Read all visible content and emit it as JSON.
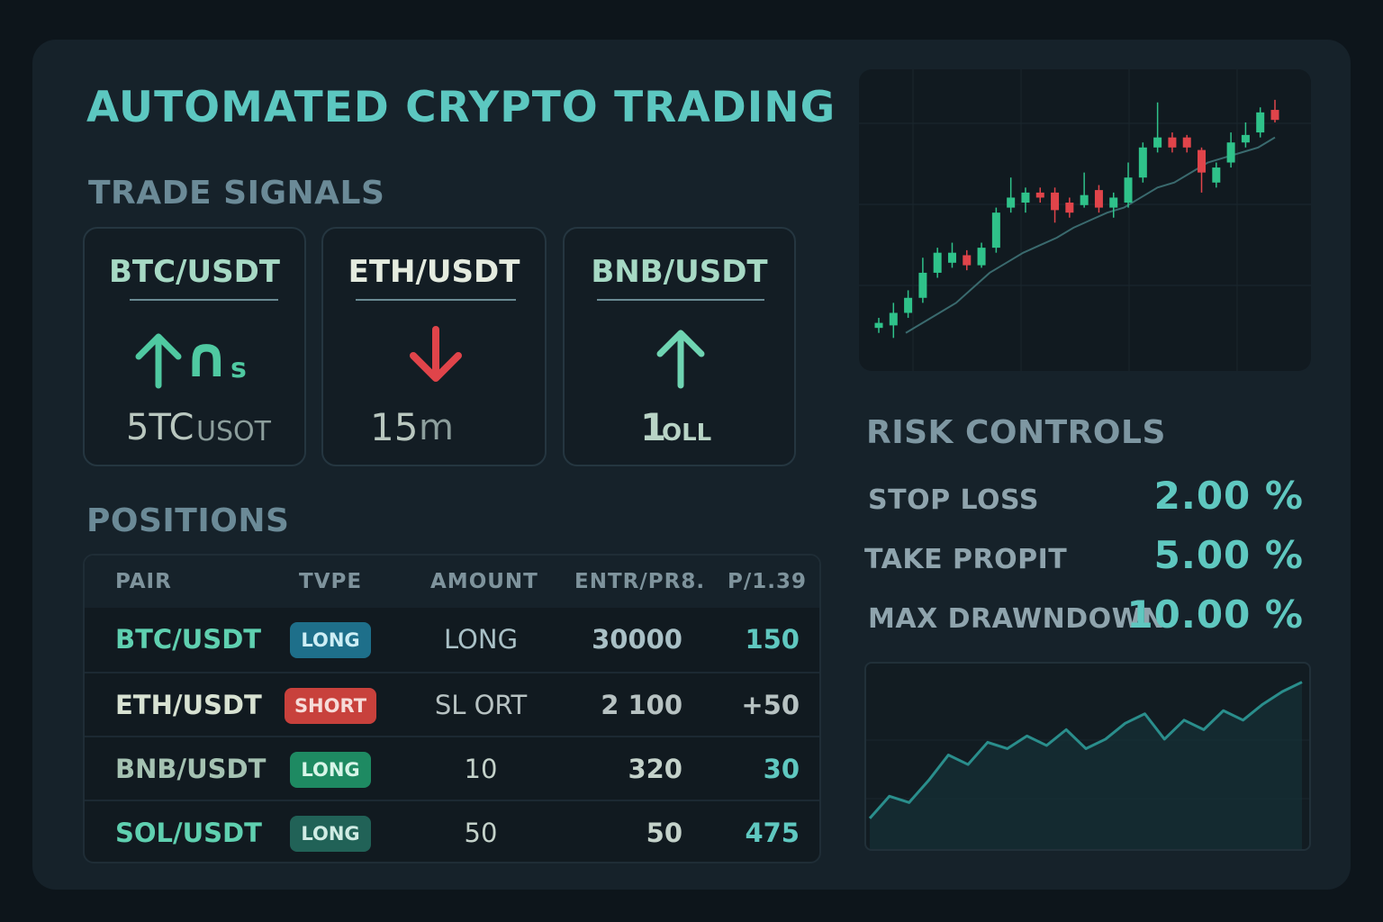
{
  "header": {
    "title": "AUTOMATED CRYPTO TRADING"
  },
  "signals": {
    "title": "TRADE SIGNALS",
    "cards": [
      {
        "pair": "BTC/USDT",
        "direction": "up",
        "icon": "arrow-up-icon",
        "glyph": "∩",
        "suffix": "s",
        "value_main": "5TC",
        "value_sub": "USOT",
        "pair_color": "#a6d9c4"
      },
      {
        "pair": "ETH/USDT",
        "direction": "down",
        "icon": "arrow-down-icon",
        "value_main": "15",
        "value_sub": "m",
        "pair_color": "#e4ebdf"
      },
      {
        "pair": "BNB/USDT",
        "direction": "up",
        "icon": "arrow-up-icon",
        "value_main": "1",
        "value_sub": "OLL",
        "pair_color": "#a6d9c4"
      }
    ]
  },
  "positions": {
    "title": "POSITIONS",
    "columns": [
      "PAIR",
      "TVPE",
      "AMOUNT",
      "ENTR/PR8.",
      "P/1.39"
    ],
    "rows": [
      {
        "pair": "BTC/USDT",
        "type": "LONG",
        "amount": "LONG",
        "entry": "30000",
        "pnl": "150",
        "pair_color": "#5fd0b0",
        "badge_bg": "#1e6f8a",
        "badge_color": "#cdeef5",
        "text_color": "#a9c0c6",
        "pnl_color": "#5fc8c0"
      },
      {
        "pair": "ETH/USDT",
        "type": "SHORT",
        "amount": "SL ORT",
        "entry": "2 100",
        "pnl": "+50",
        "pair_color": "#d8e2d2",
        "badge_bg": "#c8413c",
        "badge_color": "#f6dcd9",
        "text_color": "#b7c2c2",
        "pnl_color": "#b7c2c2"
      },
      {
        "pair": "BNB/USDT",
        "type": "LONG",
        "amount": "10",
        "entry": "320",
        "pnl": "30",
        "pair_color": "#a5c2b2",
        "badge_bg": "#1e8a62",
        "badge_color": "#d7f5e8",
        "text_color": "#c4d2ca",
        "pnl_color": "#5fc8c0"
      },
      {
        "pair": "SOL/USDT",
        "type": "LONG",
        "amount": "50",
        "entry": "50",
        "pnl": "475",
        "pair_color": "#5fd0b0",
        "badge_bg": "#216257",
        "badge_color": "#d0ece4",
        "text_color": "#c4d2ca",
        "pnl_color": "#5fc8c0"
      }
    ]
  },
  "risk": {
    "title": "RISK CONTROLS",
    "items": [
      {
        "label": "STOP  LOSS",
        "value": "2.00 %"
      },
      {
        "label": "TAKE PROPIT",
        "value": "5.00 %"
      },
      {
        "label": "MAX DRAWNDOWN",
        "value": "10.00 %"
      }
    ]
  },
  "colors": {
    "up": "#2fc28a",
    "down": "#e0444a",
    "accent": "#5cc7c0"
  },
  "chart_data": [
    {
      "type": "candlestick",
      "candles": [
        {
          "o": 10,
          "c": 12,
          "h": 14,
          "l": 8
        },
        {
          "o": 11,
          "c": 16,
          "h": 20,
          "l": 6
        },
        {
          "o": 16,
          "c": 22,
          "h": 25,
          "l": 14
        },
        {
          "o": 22,
          "c": 32,
          "h": 38,
          "l": 20
        },
        {
          "o": 32,
          "c": 40,
          "h": 42,
          "l": 30
        },
        {
          "o": 36,
          "c": 40,
          "h": 44,
          "l": 34
        },
        {
          "o": 39,
          "c": 35,
          "h": 41,
          "l": 33
        },
        {
          "o": 35,
          "c": 42,
          "h": 44,
          "l": 34
        },
        {
          "o": 42,
          "c": 56,
          "h": 58,
          "l": 40
        },
        {
          "o": 58,
          "c": 62,
          "h": 70,
          "l": 56
        },
        {
          "o": 60,
          "c": 64,
          "h": 66,
          "l": 56
        },
        {
          "o": 64,
          "c": 62,
          "h": 66,
          "l": 60
        },
        {
          "o": 64,
          "c": 57,
          "h": 66,
          "l": 52
        },
        {
          "o": 60,
          "c": 56,
          "h": 62,
          "l": 54
        },
        {
          "o": 59,
          "c": 63,
          "h": 72,
          "l": 58
        },
        {
          "o": 65,
          "c": 58,
          "h": 67,
          "l": 56
        },
        {
          "o": 58,
          "c": 62,
          "h": 64,
          "l": 54
        },
        {
          "o": 60,
          "c": 70,
          "h": 76,
          "l": 58
        },
        {
          "o": 70,
          "c": 82,
          "h": 84,
          "l": 68
        },
        {
          "o": 82,
          "c": 86,
          "h": 100,
          "l": 80
        },
        {
          "o": 86,
          "c": 82,
          "h": 88,
          "l": 80
        },
        {
          "o": 86,
          "c": 82,
          "h": 87,
          "l": 80
        },
        {
          "o": 81,
          "c": 72,
          "h": 82,
          "l": 64
        },
        {
          "o": 68,
          "c": 74,
          "h": 76,
          "l": 66
        },
        {
          "o": 76,
          "c": 84,
          "h": 88,
          "l": 74
        },
        {
          "o": 84,
          "c": 87,
          "h": 92,
          "l": 82
        },
        {
          "o": 88,
          "c": 96,
          "h": 98,
          "l": 86
        },
        {
          "o": 97,
          "c": 93,
          "h": 101,
          "l": 92
        }
      ],
      "moving_average": [
        8,
        12,
        16,
        20,
        26,
        32,
        36,
        40,
        43,
        46,
        50,
        53,
        56,
        58,
        62,
        66,
        68,
        72,
        76,
        78,
        80,
        82,
        86
      ],
      "ylim": [
        0,
        106
      ]
    },
    {
      "type": "area",
      "values": [
        8,
        22,
        18,
        32,
        48,
        42,
        56,
        52,
        60,
        54,
        64,
        52,
        58,
        68,
        74,
        58,
        70,
        64,
        76,
        70,
        80,
        88,
        94
      ],
      "ylim": [
        0,
        100
      ]
    }
  ]
}
